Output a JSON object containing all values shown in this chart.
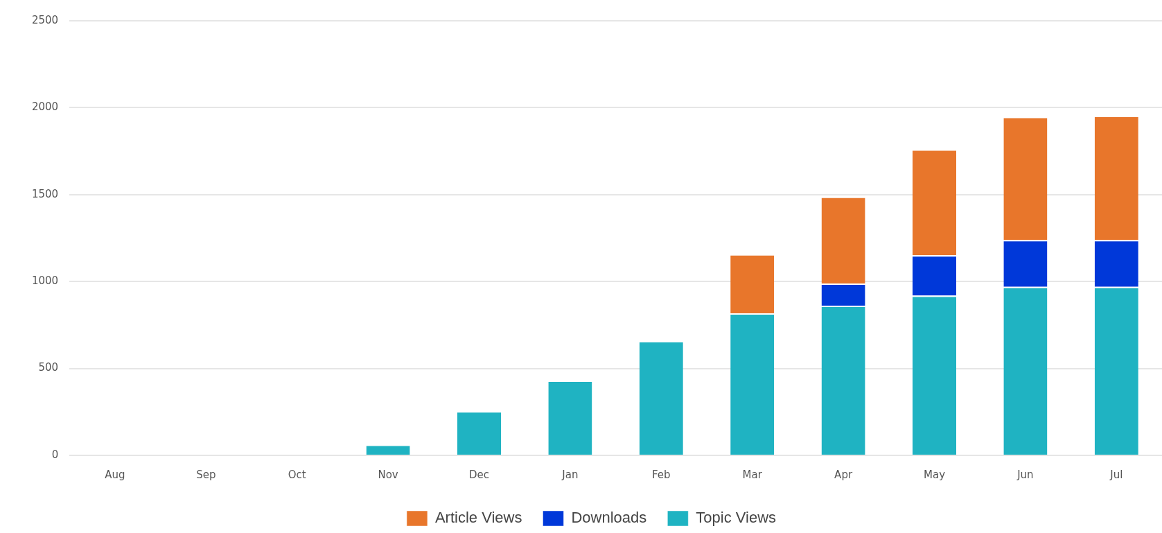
{
  "chart_data": {
    "type": "bar",
    "stacked": true,
    "categories": [
      "Aug",
      "Sep",
      "Oct",
      "Nov",
      "Dec",
      "Jan",
      "Feb",
      "Mar",
      "Apr",
      "May",
      "Jun",
      "Jul"
    ],
    "series": [
      {
        "name": "Topic Views",
        "color": "#1fb3c2",
        "values": [
          0,
          0,
          0,
          62,
          254,
          431,
          658,
          817,
          861,
          919,
          970,
          970
        ]
      },
      {
        "name": "Downloads",
        "color": "#0038d9",
        "values": [
          0,
          0,
          0,
          0,
          0,
          0,
          0,
          0,
          128,
          232,
          269,
          269
        ]
      },
      {
        "name": "Article Views",
        "color": "#e8762b",
        "values": [
          0,
          0,
          0,
          0,
          0,
          0,
          0,
          340,
          499,
          609,
          709,
          715
        ]
      }
    ],
    "ylim": [
      0,
      2500
    ],
    "yticks": [
      0,
      500,
      1000,
      1500,
      2000,
      2500
    ],
    "grid": "y",
    "legend": "bottom"
  }
}
